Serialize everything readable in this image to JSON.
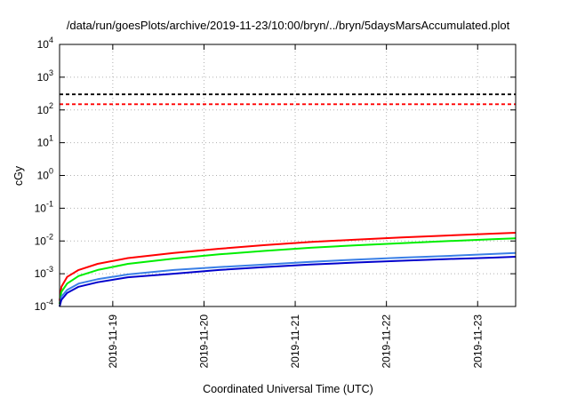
{
  "chart_data": {
    "type": "line",
    "title": "/data/run/goesPlots/archive/2019-11-23/10:00/bryn/../bryn/5daysMarsAccumulated.plot",
    "xlabel": "Coordinated Universal Time (UTC)",
    "ylabel": "cGy",
    "y_scale": "log",
    "ylim": [
      0.0001,
      10000
    ],
    "y_ticks": [
      {
        "value": 0.0001,
        "base": "10",
        "exp": "-4"
      },
      {
        "value": 0.001,
        "base": "10",
        "exp": "-3"
      },
      {
        "value": 0.01,
        "base": "10",
        "exp": "-2"
      },
      {
        "value": 0.1,
        "base": "10",
        "exp": "-1"
      },
      {
        "value": 1,
        "base": "10",
        "exp": "0"
      },
      {
        "value": 10,
        "base": "10",
        "exp": "1"
      },
      {
        "value": 100,
        "base": "10",
        "exp": "2"
      },
      {
        "value": 1000,
        "base": "10",
        "exp": "3"
      },
      {
        "value": 10000,
        "base": "10",
        "exp": "4"
      }
    ],
    "xlim": [
      "2019-11-18 10:00",
      "2019-11-23 10:00"
    ],
    "x_ticks": [
      "2019-11-19",
      "2019-11-20",
      "2019-11-21",
      "2019-11-22",
      "2019-11-23"
    ],
    "grid": true,
    "series": [
      {
        "color": "#000000",
        "style": "dashed",
        "x": [
          "2019-11-18 10:00",
          "2019-11-23 10:00"
        ],
        "y": [
          300,
          300
        ]
      },
      {
        "color": "#ff0000",
        "style": "dashed",
        "x": [
          "2019-11-18 10:00",
          "2019-11-23 10:00"
        ],
        "y": [
          150,
          150
        ]
      },
      {
        "color": "#ff0000",
        "style": "solid",
        "x": [
          "2019-11-18 10:00",
          "2019-11-18 10:30",
          "2019-11-18 12:00",
          "2019-11-18 15:00",
          "2019-11-18 20:00",
          "2019-11-19 04:00",
          "2019-11-19 16:00",
          "2019-11-20 04:00",
          "2019-11-20 16:00",
          "2019-11-21 04:00",
          "2019-11-21 16:00",
          "2019-11-22 04:00",
          "2019-11-22 16:00",
          "2019-11-23 04:00",
          "2019-11-23 10:00"
        ],
        "y": [
          0.00015,
          0.0004,
          0.0008,
          0.0013,
          0.002,
          0.003,
          0.0043,
          0.0058,
          0.0075,
          0.0093,
          0.011,
          0.0128,
          0.0147,
          0.0167,
          0.0178
        ]
      },
      {
        "color": "#00ee00",
        "style": "solid",
        "x": [
          "2019-11-18 10:00",
          "2019-11-18 10:30",
          "2019-11-18 12:00",
          "2019-11-18 15:00",
          "2019-11-18 20:00",
          "2019-11-19 04:00",
          "2019-11-19 16:00",
          "2019-11-20 04:00",
          "2019-11-20 16:00",
          "2019-11-21 04:00",
          "2019-11-21 16:00",
          "2019-11-22 04:00",
          "2019-11-22 16:00",
          "2019-11-23 04:00",
          "2019-11-23 10:00"
        ],
        "y": [
          0.00012,
          0.00028,
          0.0005,
          0.00085,
          0.0013,
          0.002,
          0.0029,
          0.0039,
          0.005,
          0.0062,
          0.0074,
          0.0086,
          0.0099,
          0.0113,
          0.012
        ]
      },
      {
        "color": "#3a7fe6",
        "style": "solid",
        "x": [
          "2019-11-18 10:00",
          "2019-11-18 10:30",
          "2019-11-18 12:00",
          "2019-11-18 15:00",
          "2019-11-18 20:00",
          "2019-11-19 04:00",
          "2019-11-19 16:00",
          "2019-11-20 04:00",
          "2019-11-20 16:00",
          "2019-11-21 04:00",
          "2019-11-21 16:00",
          "2019-11-22 04:00",
          "2019-11-22 16:00",
          "2019-11-23 04:00",
          "2019-11-23 10:00"
        ],
        "y": [
          0.0001,
          0.0002,
          0.00032,
          0.0005,
          0.00068,
          0.00095,
          0.0013,
          0.0016,
          0.0019,
          0.0023,
          0.0027,
          0.0031,
          0.0035,
          0.004,
          0.0043
        ]
      },
      {
        "color": "#0000cc",
        "style": "solid",
        "x": [
          "2019-11-18 10:00",
          "2019-11-18 10:30",
          "2019-11-18 12:00",
          "2019-11-18 15:00",
          "2019-11-18 20:00",
          "2019-11-19 04:00",
          "2019-11-19 16:00",
          "2019-11-20 04:00",
          "2019-11-20 16:00",
          "2019-11-21 04:00",
          "2019-11-21 16:00",
          "2019-11-22 04:00",
          "2019-11-22 16:00",
          "2019-11-23 04:00",
          "2019-11-23 10:00"
        ],
        "y": [
          0.0001,
          0.00016,
          0.00026,
          0.0004,
          0.00055,
          0.00078,
          0.001,
          0.0013,
          0.0016,
          0.0019,
          0.0022,
          0.0025,
          0.0028,
          0.0031,
          0.0033
        ]
      }
    ]
  }
}
